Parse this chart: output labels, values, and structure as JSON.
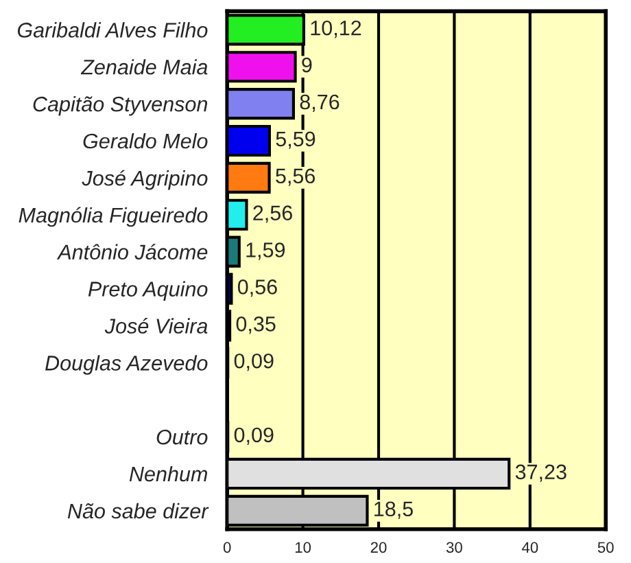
{
  "chart_data": {
    "type": "bar",
    "orientation": "horizontal",
    "categories": [
      "Garibaldi Alves Filho",
      "Zenaide Maia",
      "Capitão Styvenson",
      "Geraldo Melo",
      "José Agripino",
      "Magnólia Figueiredo",
      "Antônio Jácome",
      "Preto Aquino",
      "José Vieira",
      "Douglas Azevedo",
      null,
      "Outro",
      "Nenhum",
      "Não sabe dizer"
    ],
    "values": [
      10.12,
      9,
      8.76,
      5.59,
      5.56,
      2.56,
      1.59,
      0.56,
      0.35,
      0.09,
      null,
      0.09,
      37.23,
      18.5
    ],
    "colors": [
      "#22ee22",
      "#ee11ee",
      "#8080f0",
      "#0000ee",
      "#ff7a10",
      "#22eeee",
      "#1a7a7a",
      "#000080",
      "#000080",
      "#000080",
      "#ffffc0",
      "#c0c0c0",
      "#e0e0e0",
      "#c0c0c0"
    ],
    "value_labels": [
      "10,12",
      "9",
      "8,76",
      "5,59",
      "5,56",
      "2,56",
      "1,59",
      "0,56",
      "0,35",
      "0,09",
      null,
      "0,09",
      "37,23",
      "18,5"
    ],
    "xlim": [
      0,
      50
    ],
    "xticks": [
      0,
      10,
      20,
      30,
      40,
      50
    ],
    "grid": "x"
  }
}
